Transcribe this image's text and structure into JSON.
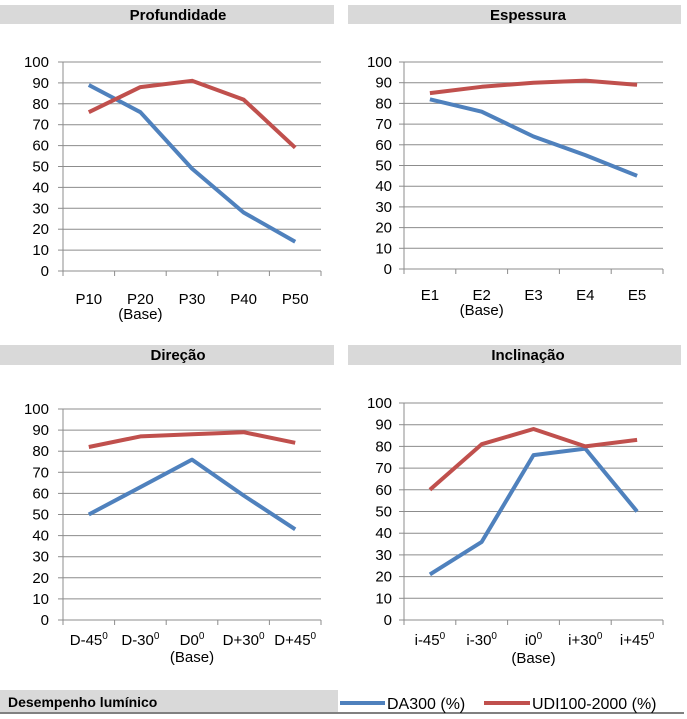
{
  "footer": {
    "title": "Desempenho lumínico"
  },
  "chart_data": [
    {
      "type": "line",
      "title": "Profundidade",
      "categories": [
        "P10",
        "P20",
        "P30",
        "P40",
        "P50"
      ],
      "category_sublabels": [
        "",
        "(Base)",
        "",
        "",
        ""
      ],
      "ylim": [
        0,
        100
      ],
      "yticks": [
        0,
        10,
        20,
        30,
        40,
        50,
        60,
        70,
        80,
        90,
        100
      ],
      "grid": true,
      "series": [
        {
          "name": "DA300 (%)",
          "color": "#4f81bd",
          "values": [
            89,
            76,
            49,
            28,
            14
          ]
        },
        {
          "name": "UDI100-2000 (%)",
          "color": "#c0504d",
          "values": [
            76,
            88,
            91,
            82,
            59
          ]
        }
      ]
    },
    {
      "type": "line",
      "title": "Espessura",
      "categories": [
        "E1",
        "E2",
        "E3",
        "E4",
        "E5"
      ],
      "category_sublabels": [
        "",
        "(Base)",
        "",
        "",
        ""
      ],
      "ylim": [
        0,
        100
      ],
      "yticks": [
        0,
        10,
        20,
        30,
        40,
        50,
        60,
        70,
        80,
        90,
        100
      ],
      "grid": true,
      "series": [
        {
          "name": "DA300 (%)",
          "color": "#4f81bd",
          "values": [
            82,
            76,
            64,
            55,
            45
          ]
        },
        {
          "name": "UDI100-2000 (%)",
          "color": "#c0504d",
          "values": [
            85,
            88,
            90,
            91,
            89
          ]
        }
      ]
    },
    {
      "type": "line",
      "title": "Direção",
      "categories": [
        "D-45",
        "D-30",
        "D0",
        "D+30",
        "D+45"
      ],
      "category_sup": "0",
      "category_sublabels": [
        "",
        "",
        "(Base)",
        "",
        ""
      ],
      "ylim": [
        0,
        100
      ],
      "yticks": [
        0,
        10,
        20,
        30,
        40,
        50,
        60,
        70,
        80,
        90,
        100
      ],
      "grid": true,
      "series": [
        {
          "name": "DA300 (%)",
          "color": "#4f81bd",
          "values": [
            50,
            63,
            76,
            59,
            43
          ]
        },
        {
          "name": "UDI100-2000 (%)",
          "color": "#c0504d",
          "values": [
            82,
            87,
            88,
            89,
            84
          ]
        }
      ]
    },
    {
      "type": "line",
      "title": "Inclinação",
      "categories": [
        "i-45",
        "i-30",
        "i0",
        "i+30",
        "i+45"
      ],
      "category_sup": "0",
      "category_sublabels": [
        "",
        "",
        "(Base)",
        "",
        ""
      ],
      "ylim": [
        0,
        100
      ],
      "yticks": [
        0,
        10,
        20,
        30,
        40,
        50,
        60,
        70,
        80,
        90,
        100
      ],
      "grid": true,
      "series": [
        {
          "name": "DA300 (%)",
          "color": "#4f81bd",
          "values": [
            21,
            36,
            76,
            79,
            50
          ]
        },
        {
          "name": "UDI100-2000 (%)",
          "color": "#c0504d",
          "values": [
            60,
            81,
            88,
            80,
            83
          ]
        }
      ]
    }
  ],
  "legend": {
    "placement": "bottom-right",
    "items": [
      {
        "label": "DA300 (%)",
        "color": "#4f81bd"
      },
      {
        "label": "UDI100-2000 (%)",
        "color": "#c0504d"
      }
    ]
  }
}
